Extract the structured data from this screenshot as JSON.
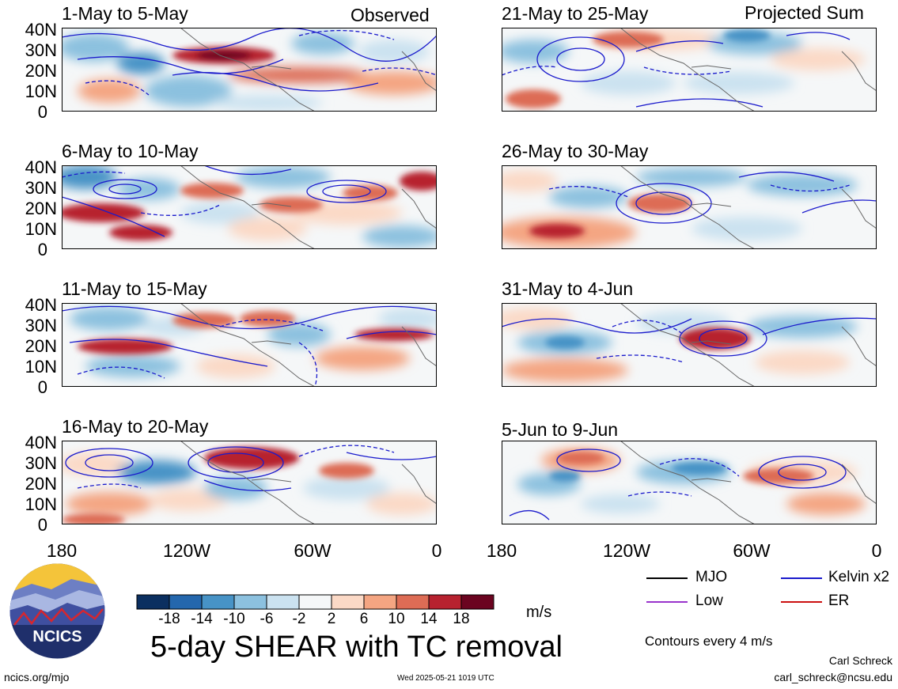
{
  "header": {
    "observed_label": "Observed",
    "projected_label": "Projected Sum"
  },
  "panels": [
    {
      "id": "p1",
      "period": "1-May to 5-May"
    },
    {
      "id": "p2",
      "period": "6-May to 10-May"
    },
    {
      "id": "p3",
      "period": "11-May to 15-May"
    },
    {
      "id": "p4",
      "period": "16-May to 20-May"
    },
    {
      "id": "p5",
      "period": "21-May to 25-May"
    },
    {
      "id": "p6",
      "period": "26-May to 30-May"
    },
    {
      "id": "p7",
      "period": "31-May to 4-Jun"
    },
    {
      "id": "p8",
      "period": "5-Jun to 9-Jun"
    }
  ],
  "lat_ticks": [
    "40N",
    "30N",
    "20N",
    "10N",
    "0"
  ],
  "lon_ticks": [
    "180",
    "120W",
    "60W",
    "0"
  ],
  "colorbar": {
    "colors": [
      "#0b2f60",
      "#2467ad",
      "#4793c6",
      "#8cc1df",
      "#cbe2f0",
      "#f5f7f8",
      "#fbd9c6",
      "#f4a582",
      "#dd6c55",
      "#b7222f",
      "#6b0420"
    ],
    "labels": [
      "-18",
      "-14",
      "-10",
      "-6",
      "-2",
      "2",
      "6",
      "10",
      "14",
      "18"
    ],
    "units": "m/s"
  },
  "legend": {
    "items": [
      {
        "label": "MJO",
        "color": "#000000"
      },
      {
        "label": "Kelvin x2",
        "color": "#1a1acc"
      },
      {
        "label": "Low",
        "color": "#9933cc"
      },
      {
        "label": "ER",
        "color": "#cc1111"
      }
    ],
    "contour_note": "Contours every 4 m/s"
  },
  "main_title": "5-day SHEAR with TC removal",
  "logo_text": "NCICS",
  "footer": {
    "url": "ncics.org/mjo",
    "timestamp": "Wed 2025-05-21 1019 UTC",
    "author": "Carl Schreck",
    "email": "carl_schreck@ncsu.edu"
  }
}
